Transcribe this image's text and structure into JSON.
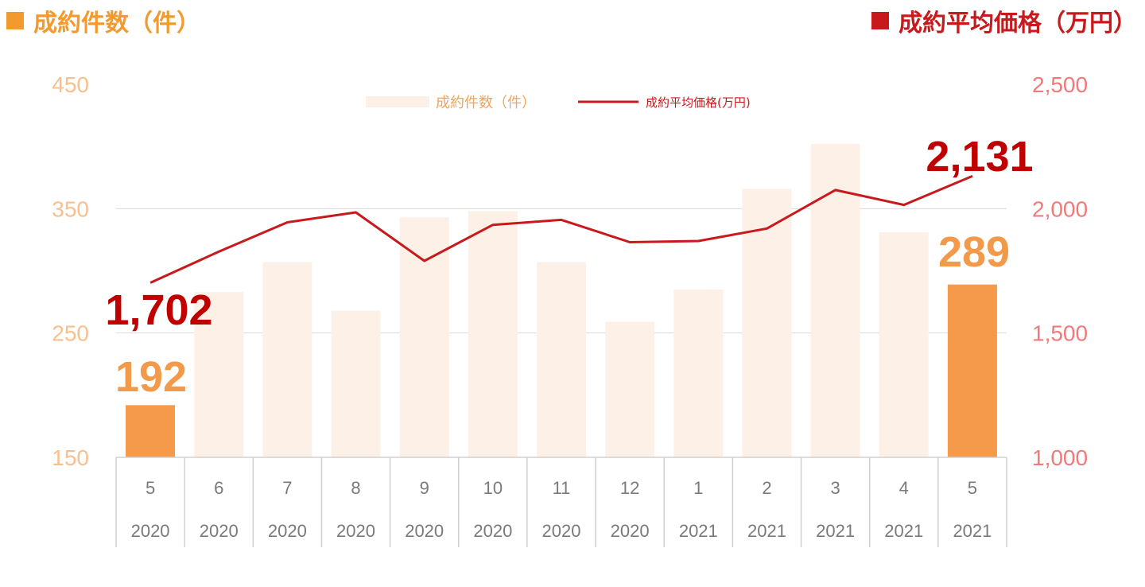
{
  "header": {
    "left_title": "成約件数（件）",
    "right_title": "成約平均価格（万円）"
  },
  "colors": {
    "count_accent": "#F29A2E",
    "price_accent": "#C8191C",
    "bar_highlight": "#F5994A",
    "bar_faded": "#FDF1E7"
  },
  "chart_data": {
    "type": "bar",
    "categories": [
      {
        "month": "5",
        "year": "2020"
      },
      {
        "month": "6",
        "year": "2020"
      },
      {
        "month": "7",
        "year": "2020"
      },
      {
        "month": "8",
        "year": "2020"
      },
      {
        "month": "9",
        "year": "2020"
      },
      {
        "month": "10",
        "year": "2020"
      },
      {
        "month": "11",
        "year": "2020"
      },
      {
        "month": "12",
        "year": "2020"
      },
      {
        "month": "1",
        "year": "2021"
      },
      {
        "month": "2",
        "year": "2021"
      },
      {
        "month": "3",
        "year": "2021"
      },
      {
        "month": "4",
        "year": "2021"
      },
      {
        "month": "5",
        "year": "2021"
      }
    ],
    "series": [
      {
        "name": "成約件数（件）",
        "type": "bar",
        "axis": "left",
        "values": [
          192,
          283,
          307,
          268,
          343,
          348,
          307,
          259,
          285,
          366,
          402,
          331,
          289
        ],
        "highlighted_indices": [
          0,
          12
        ]
      },
      {
        "name": "成約平均価格(万円)",
        "type": "line",
        "axis": "right",
        "values": [
          1702,
          1827,
          1945,
          1985,
          1790,
          1935,
          1955,
          1865,
          1870,
          1920,
          2075,
          2015,
          2131
        ]
      }
    ],
    "left_axis": {
      "ylim": [
        150,
        450
      ],
      "ticks": [
        "150",
        "250",
        "350",
        "450"
      ]
    },
    "right_axis": {
      "ylim": [
        1000,
        2500
      ],
      "ticks": [
        "1,000",
        "1,500",
        "2,000",
        "2,500"
      ]
    },
    "data_labels": {
      "count_first": "192",
      "count_last": "289",
      "price_first": "1,702",
      "price_last": "2,131"
    },
    "legend_position": "top-center",
    "grid": true
  }
}
